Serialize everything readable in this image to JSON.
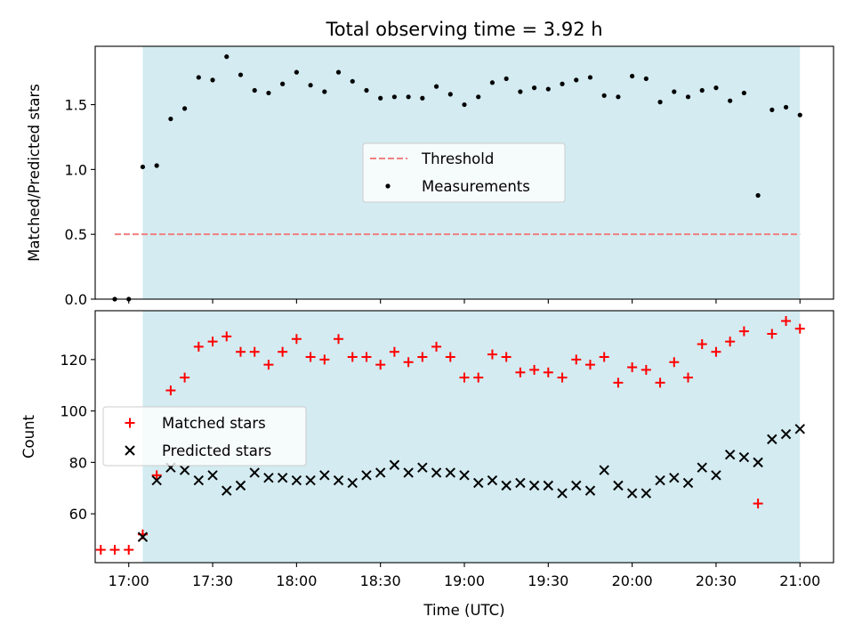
{
  "chart_data": [
    {
      "type": "scatter",
      "title": "Total observing time = 3.92 h",
      "ylabel": "Matched/Predicted stars",
      "xlim": [
        "16:48",
        "21:12"
      ],
      "ylim": [
        0,
        1.95
      ],
      "yticks": [
        "0.0",
        "0.5",
        "1.0",
        "1.5"
      ],
      "shaded_interval": [
        "17:05",
        "21:00"
      ],
      "shade_color": "#d3ebf1",
      "legend_position": "center",
      "threshold": {
        "name": "Threshold",
        "value": 0.5,
        "x_range": [
          "16:55",
          "21:00"
        ],
        "color": "#f08080",
        "style": "dashed"
      },
      "series": [
        {
          "name": "Measurements",
          "marker": "dot",
          "color": "#000000",
          "x": [
            "16:55",
            "17:00",
            "17:05",
            "17:10",
            "17:15",
            "17:20",
            "17:25",
            "17:30",
            "17:35",
            "17:40",
            "17:45",
            "17:50",
            "17:55",
            "18:00",
            "18:05",
            "18:10",
            "18:15",
            "18:20",
            "18:25",
            "18:30",
            "18:35",
            "18:40",
            "18:45",
            "18:50",
            "18:55",
            "19:00",
            "19:05",
            "19:10",
            "19:15",
            "19:20",
            "19:25",
            "19:30",
            "19:35",
            "19:40",
            "19:45",
            "19:50",
            "19:55",
            "20:00",
            "20:05",
            "20:10",
            "20:15",
            "20:20",
            "20:25",
            "20:30",
            "20:35",
            "20:40",
            "20:45",
            "20:50",
            "20:55",
            "21:00"
          ],
          "y": [
            0.0,
            0.0,
            1.02,
            1.03,
            1.39,
            1.47,
            1.71,
            1.69,
            1.87,
            1.73,
            1.61,
            1.59,
            1.66,
            1.75,
            1.65,
            1.6,
            1.75,
            1.68,
            1.61,
            1.55,
            1.56,
            1.56,
            1.55,
            1.64,
            1.58,
            1.5,
            1.56,
            1.67,
            1.7,
            1.6,
            1.63,
            1.62,
            1.66,
            1.69,
            1.71,
            1.57,
            1.56,
            1.72,
            1.7,
            1.52,
            1.6,
            1.56,
            1.61,
            1.63,
            1.53,
            1.59,
            0.8,
            1.46,
            1.48,
            1.42
          ]
        }
      ]
    },
    {
      "type": "scatter",
      "xlabel": "Time (UTC)",
      "ylabel": "Count",
      "xlim": [
        "16:48",
        "21:12"
      ],
      "ylim": [
        41,
        139
      ],
      "yticks": [
        "60",
        "80",
        "100",
        "120"
      ],
      "xticks": [
        "17:00",
        "17:30",
        "18:00",
        "18:30",
        "19:00",
        "19:30",
        "20:00",
        "20:30",
        "21:00"
      ],
      "shaded_interval": [
        "17:05",
        "21:00"
      ],
      "legend_position": "center-left",
      "series": [
        {
          "name": "Matched stars",
          "marker": "plus",
          "color": "#ff0000",
          "x": [
            "16:50",
            "16:55",
            "17:00",
            "17:05",
            "17:10",
            "17:15",
            "17:20",
            "17:25",
            "17:30",
            "17:35",
            "17:40",
            "17:45",
            "17:50",
            "17:55",
            "18:00",
            "18:05",
            "18:10",
            "18:15",
            "18:20",
            "18:25",
            "18:30",
            "18:35",
            "18:40",
            "18:45",
            "18:50",
            "18:55",
            "19:00",
            "19:05",
            "19:10",
            "19:15",
            "19:20",
            "19:25",
            "19:30",
            "19:35",
            "19:40",
            "19:45",
            "19:50",
            "19:55",
            "20:00",
            "20:05",
            "20:10",
            "20:15",
            "20:20",
            "20:25",
            "20:30",
            "20:35",
            "20:40",
            "20:45",
            "20:50",
            "20:55",
            "21:00"
          ],
          "y": [
            46,
            46,
            46,
            52,
            75,
            108,
            113,
            125,
            127,
            129,
            123,
            123,
            118,
            123,
            128,
            121,
            120,
            128,
            121,
            121,
            118,
            123,
            119,
            121,
            125,
            121,
            113,
            113,
            122,
            121,
            115,
            116,
            115,
            113,
            120,
            118,
            121,
            111,
            117,
            116,
            111,
            119,
            113,
            126,
            123,
            127,
            131,
            64,
            130,
            135,
            132
          ]
        },
        {
          "name": "Predicted stars",
          "marker": "x",
          "color": "#000000",
          "x": [
            "17:05",
            "17:10",
            "17:15",
            "17:20",
            "17:25",
            "17:30",
            "17:35",
            "17:40",
            "17:45",
            "17:50",
            "17:55",
            "18:00",
            "18:05",
            "18:10",
            "18:15",
            "18:20",
            "18:25",
            "18:30",
            "18:35",
            "18:40",
            "18:45",
            "18:50",
            "18:55",
            "19:00",
            "19:05",
            "19:10",
            "19:15",
            "19:20",
            "19:25",
            "19:30",
            "19:35",
            "19:40",
            "19:45",
            "19:50",
            "19:55",
            "20:00",
            "20:05",
            "20:10",
            "20:15",
            "20:20",
            "20:25",
            "20:30",
            "20:35",
            "20:40",
            "20:45",
            "20:50",
            "20:55",
            "21:00"
          ],
          "y": [
            51,
            73,
            78,
            77,
            73,
            75,
            69,
            71,
            76,
            74,
            74,
            73,
            73,
            75,
            73,
            72,
            75,
            76,
            79,
            76,
            78,
            76,
            76,
            75,
            72,
            73,
            71,
            72,
            71,
            71,
            68,
            71,
            69,
            77,
            71,
            68,
            68,
            73,
            74,
            72,
            78,
            75,
            83,
            82,
            80,
            89,
            91,
            93
          ]
        }
      ]
    }
  ]
}
